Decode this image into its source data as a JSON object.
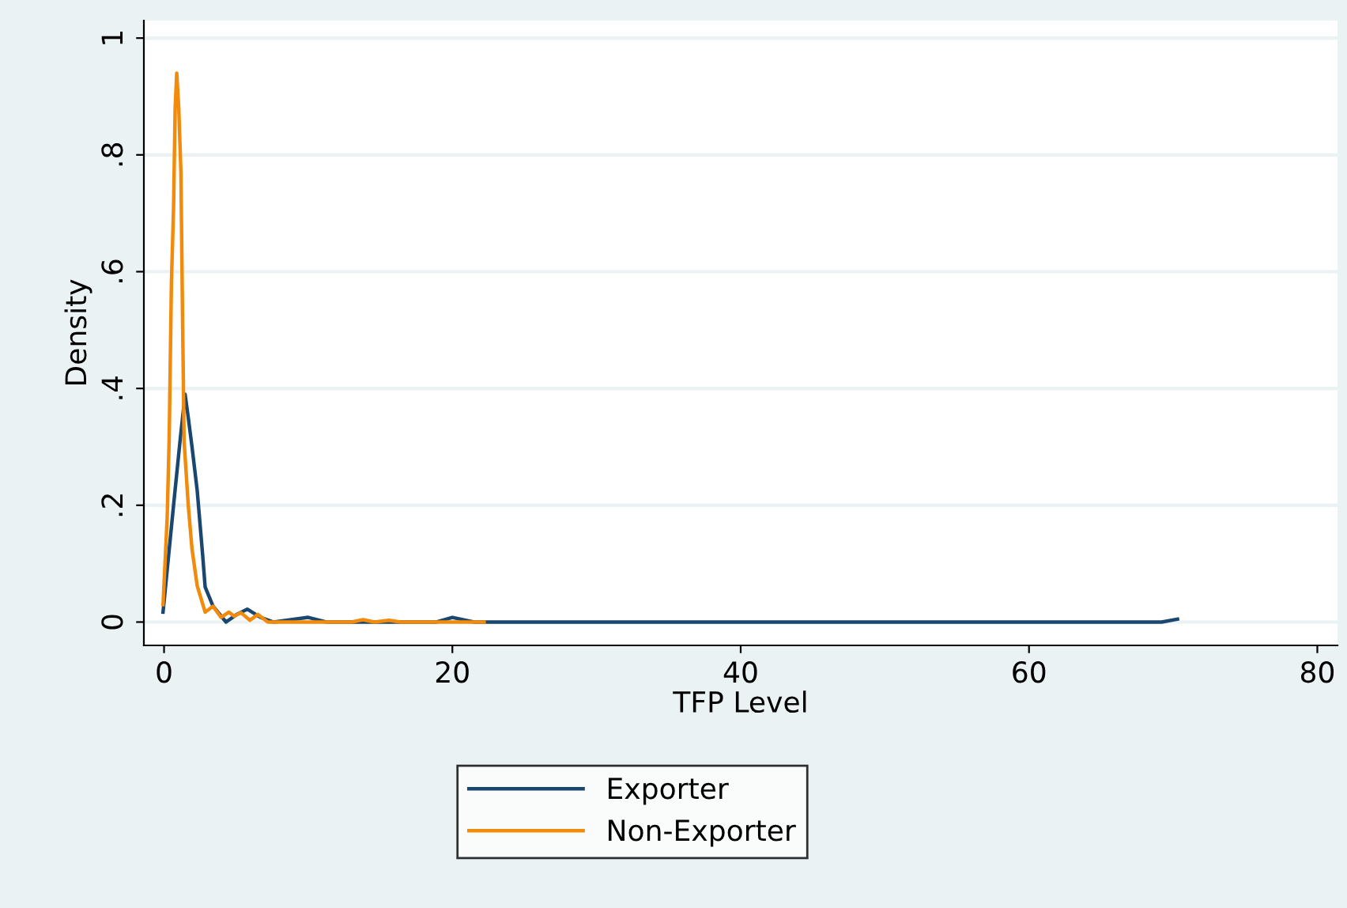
{
  "chart_data": {
    "type": "line",
    "xlabel": "TFP Level",
    "ylabel": "Density",
    "xlim": [
      -1.4,
      81.4
    ],
    "ylim": [
      -0.04,
      1.03
    ],
    "xticks": [
      0,
      20,
      40,
      60,
      80
    ],
    "yticks": [
      0,
      {
        "value": 0.2,
        "label": ".2"
      },
      {
        "value": 0.4,
        "label": ".4"
      },
      {
        "value": 0.6,
        "label": ".6"
      },
      {
        "value": 0.8,
        "label": ".8"
      },
      1
    ],
    "grid": "y",
    "legend": "bottom",
    "line_style": "solid",
    "marker": "none",
    "series": [
      {
        "name": "Exporter",
        "color": "#1a476f",
        "x": [
          -0.07,
          0.22,
          0.66,
          1.13,
          1.46,
          1.68,
          1.94,
          2.3,
          2.67,
          2.85,
          3.4,
          4.3,
          5.04,
          5.77,
          6.7,
          7.6,
          10.0,
          11.25,
          18.9,
          20.0,
          21.5,
          69.2,
          70.3
        ],
        "values": [
          0.017,
          0.09,
          0.2,
          0.315,
          0.39,
          0.35,
          0.3,
          0.225,
          0.117,
          0.06,
          0.027,
          0.0,
          0.013,
          0.022,
          0.008,
          0.0,
          0.008,
          0.0,
          0.0,
          0.008,
          0.0,
          0.0,
          0.005
        ]
      },
      {
        "name": "Non-Exporter",
        "color": "#f28b0c",
        "x": [
          -0.07,
          0.22,
          0.36,
          0.51,
          0.66,
          0.77,
          0.88,
          1.02,
          1.17,
          1.28,
          1.39,
          1.68,
          1.94,
          2.3,
          2.85,
          3.4,
          3.95,
          4.5,
          4.86,
          5.33,
          5.96,
          6.5,
          7.2,
          13.0,
          13.8,
          14.6,
          15.6,
          16.4,
          22.2
        ],
        "values": [
          0.03,
          0.18,
          0.32,
          0.58,
          0.71,
          0.88,
          0.94,
          0.88,
          0.77,
          0.53,
          0.31,
          0.2,
          0.125,
          0.062,
          0.017,
          0.027,
          0.008,
          0.017,
          0.01,
          0.016,
          0.003,
          0.013,
          0.0,
          0.0,
          0.004,
          0.0,
          0.003,
          0.0,
          0.0
        ]
      }
    ]
  }
}
